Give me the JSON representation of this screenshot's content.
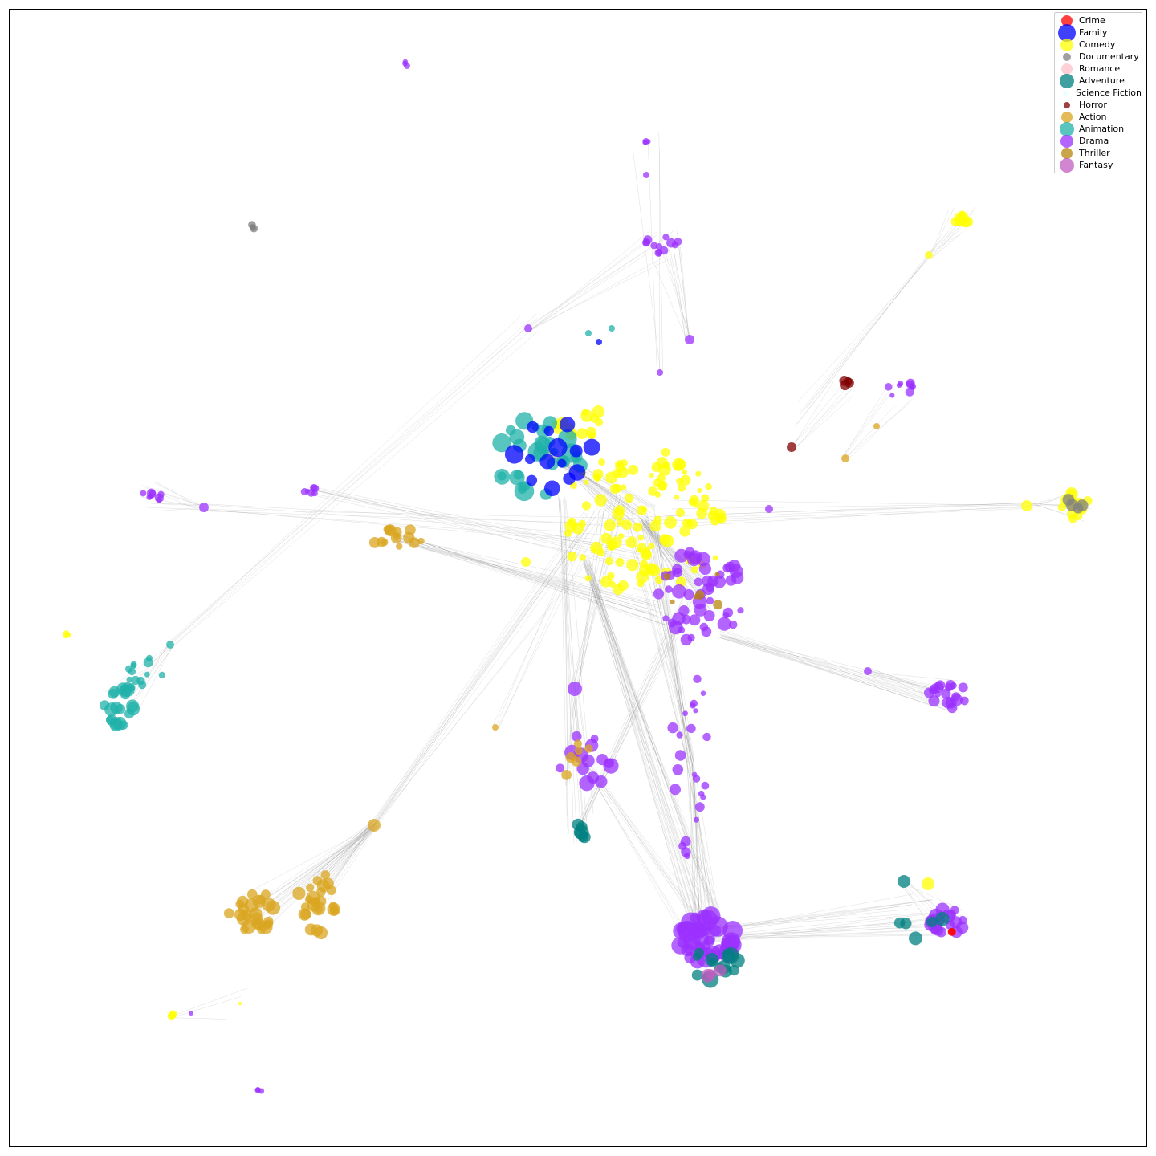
{
  "figure": {
    "type": "network-graph",
    "legend_placement": "top-right",
    "axes_ticks": false,
    "edge_color": "#888888",
    "node_opacity": 0.75
  },
  "legend": [
    {
      "label": "Crime",
      "color": "#ff0000",
      "size": 7
    },
    {
      "label": "Family",
      "color": "#0000ff",
      "size": 11
    },
    {
      "label": "Comedy",
      "color": "#ffff00",
      "size": 8
    },
    {
      "label": "Documentary",
      "color": "#808080",
      "size": 5
    },
    {
      "label": "Romance",
      "color": "#ffc0cb",
      "size": 7
    },
    {
      "label": "Adventure",
      "color": "#008080",
      "size": 9
    },
    {
      "label": "Science Fiction",
      "color": "#e0ffff",
      "size": 3
    },
    {
      "label": "Horror",
      "color": "#800000",
      "size": 4
    },
    {
      "label": "Action",
      "color": "#daa520",
      "size": 7
    },
    {
      "label": "Animation",
      "color": "#20b2aa",
      "size": 9
    },
    {
      "label": "Drama",
      "color": "#9b30ff",
      "size": 8
    },
    {
      "label": "Thriller",
      "color": "#b8860b",
      "size": 7
    },
    {
      "label": "Fantasy",
      "color": "#c05ec0",
      "size": 9
    }
  ],
  "clusters": [
    {
      "genre": "Comedy",
      "count": 170,
      "size": [
        3,
        8
      ]
    },
    {
      "genre": "Animation",
      "count": 38,
      "size": [
        5,
        13
      ]
    },
    {
      "genre": "Family",
      "count": 16,
      "size": [
        4,
        12
      ]
    },
    {
      "genre": "Drama",
      "count": 90,
      "size": [
        3,
        9
      ]
    },
    {
      "genre": "Action",
      "count": 70,
      "size": [
        4,
        9
      ]
    },
    {
      "genre": "Adventure",
      "count": 25,
      "size": [
        4,
        12
      ]
    },
    {
      "genre": "Documentary",
      "count": 8,
      "size": [
        3,
        7
      ]
    },
    {
      "genre": "Horror",
      "count": 6,
      "size": [
        3,
        7
      ]
    },
    {
      "genre": "Thriller",
      "count": 6,
      "size": [
        3,
        6
      ]
    },
    {
      "genre": "Fantasy",
      "count": 3,
      "size": [
        5,
        9
      ]
    },
    {
      "genre": "Crime",
      "count": 2,
      "size": [
        4,
        6
      ]
    }
  ]
}
